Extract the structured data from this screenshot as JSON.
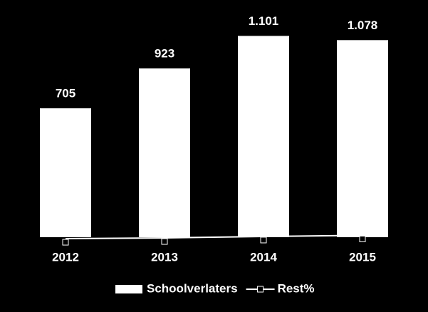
{
  "chart_data": {
    "type": "bar",
    "categories": [
      "2012",
      "2013",
      "2014",
      "2015"
    ],
    "series": [
      {
        "name": "Schoolverlaters",
        "color": "#ffffff",
        "values": [
          705,
          923,
          1101,
          1078
        ],
        "value_labels": [
          "705",
          "923",
          "1.101",
          "1.078"
        ]
      },
      {
        "name": "Rest%",
        "type": "line",
        "color": "#ffffff",
        "values": [
          -8,
          -4,
          4,
          10
        ]
      }
    ],
    "ylim": [
      0,
      1200
    ],
    "grid": false
  }
}
